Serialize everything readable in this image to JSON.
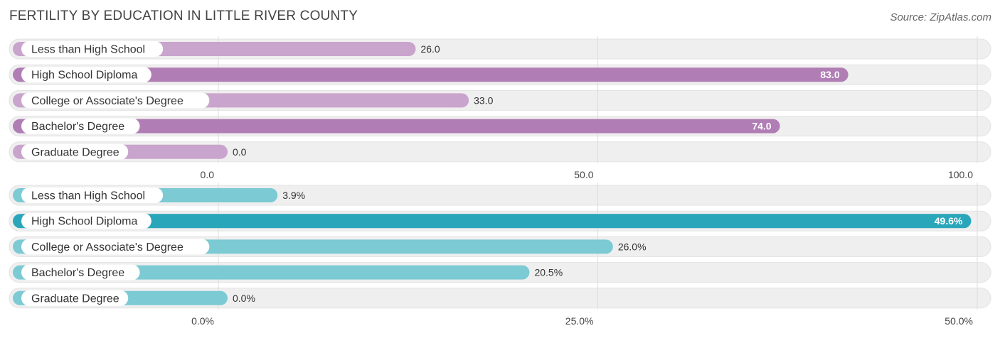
{
  "title": "FERTILITY BY EDUCATION IN LITTLE RIVER COUNTY",
  "source": "Source: ZipAtlas.com",
  "colors": {
    "purple_strong": "#b07db5",
    "purple_light": "#c9a4cc",
    "teal_strong": "#2aa6ba",
    "teal_light": "#7ccad4",
    "row_bg": "#efefef",
    "grid": "#dddddd"
  },
  "chart_data": [
    {
      "type": "bar",
      "orientation": "horizontal",
      "categories": [
        "Less than High School",
        "High School Diploma",
        "College or Associate's Degree",
        "Bachelor's Degree",
        "Graduate Degree"
      ],
      "values": [
        26.0,
        83.0,
        33.0,
        74.0,
        0.0
      ],
      "value_labels": [
        "26.0",
        "83.0",
        "33.0",
        "74.0",
        "0.0"
      ],
      "xlim": [
        0,
        100
      ],
      "ticks": [
        0,
        50,
        100
      ],
      "tick_labels": [
        "0.0",
        "50.0",
        "100.0"
      ],
      "grid": true
    },
    {
      "type": "bar",
      "orientation": "horizontal",
      "categories": [
        "Less than High School",
        "High School Diploma",
        "College or Associate's Degree",
        "Bachelor's Degree",
        "Graduate Degree"
      ],
      "values": [
        3.9,
        49.6,
        26.0,
        20.5,
        0.0
      ],
      "value_labels": [
        "3.9%",
        "49.6%",
        "26.0%",
        "20.5%",
        "0.0%"
      ],
      "xlim": [
        0,
        50
      ],
      "ticks": [
        0,
        25,
        50
      ],
      "tick_labels": [
        "0.0%",
        "25.0%",
        "50.0%"
      ],
      "grid": true
    }
  ]
}
